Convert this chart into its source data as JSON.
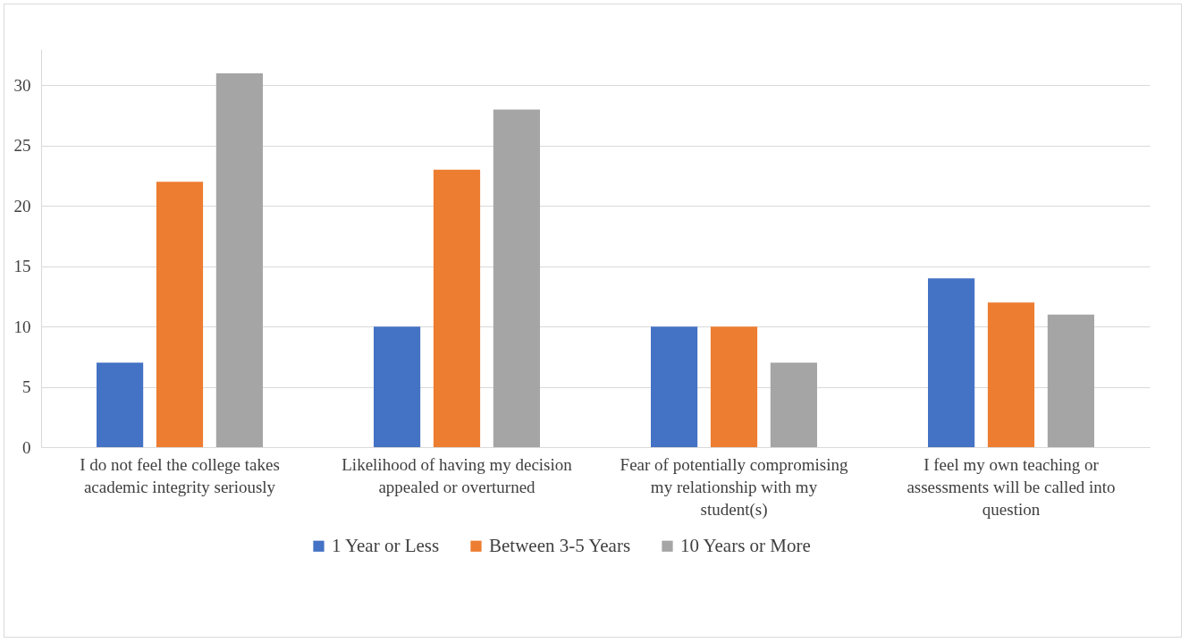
{
  "chart_data": {
    "type": "bar",
    "categories": [
      "I do not feel the college takes academic integrity seriously",
      "Likelihood of having my decision appealed or overturned",
      "Fear of potentially compromising my relationship with my student(s)",
      "I feel my own teaching or assessments will be called into question"
    ],
    "series": [
      {
        "name": "1 Year or Less",
        "color": "#4472c4",
        "values": [
          7,
          10,
          10,
          14
        ]
      },
      {
        "name": "Between 3-5 Years",
        "color": "#ed7d31",
        "values": [
          22,
          23,
          10,
          12
        ]
      },
      {
        "name": "10 Years or More",
        "color": "#a5a5a5",
        "values": [
          31,
          28,
          7,
          11
        ]
      }
    ],
    "ylim": [
      0,
      33
    ],
    "yticks": [
      0,
      5,
      10,
      15,
      20,
      25,
      30
    ],
    "grid": "y",
    "legend": "bottom"
  }
}
